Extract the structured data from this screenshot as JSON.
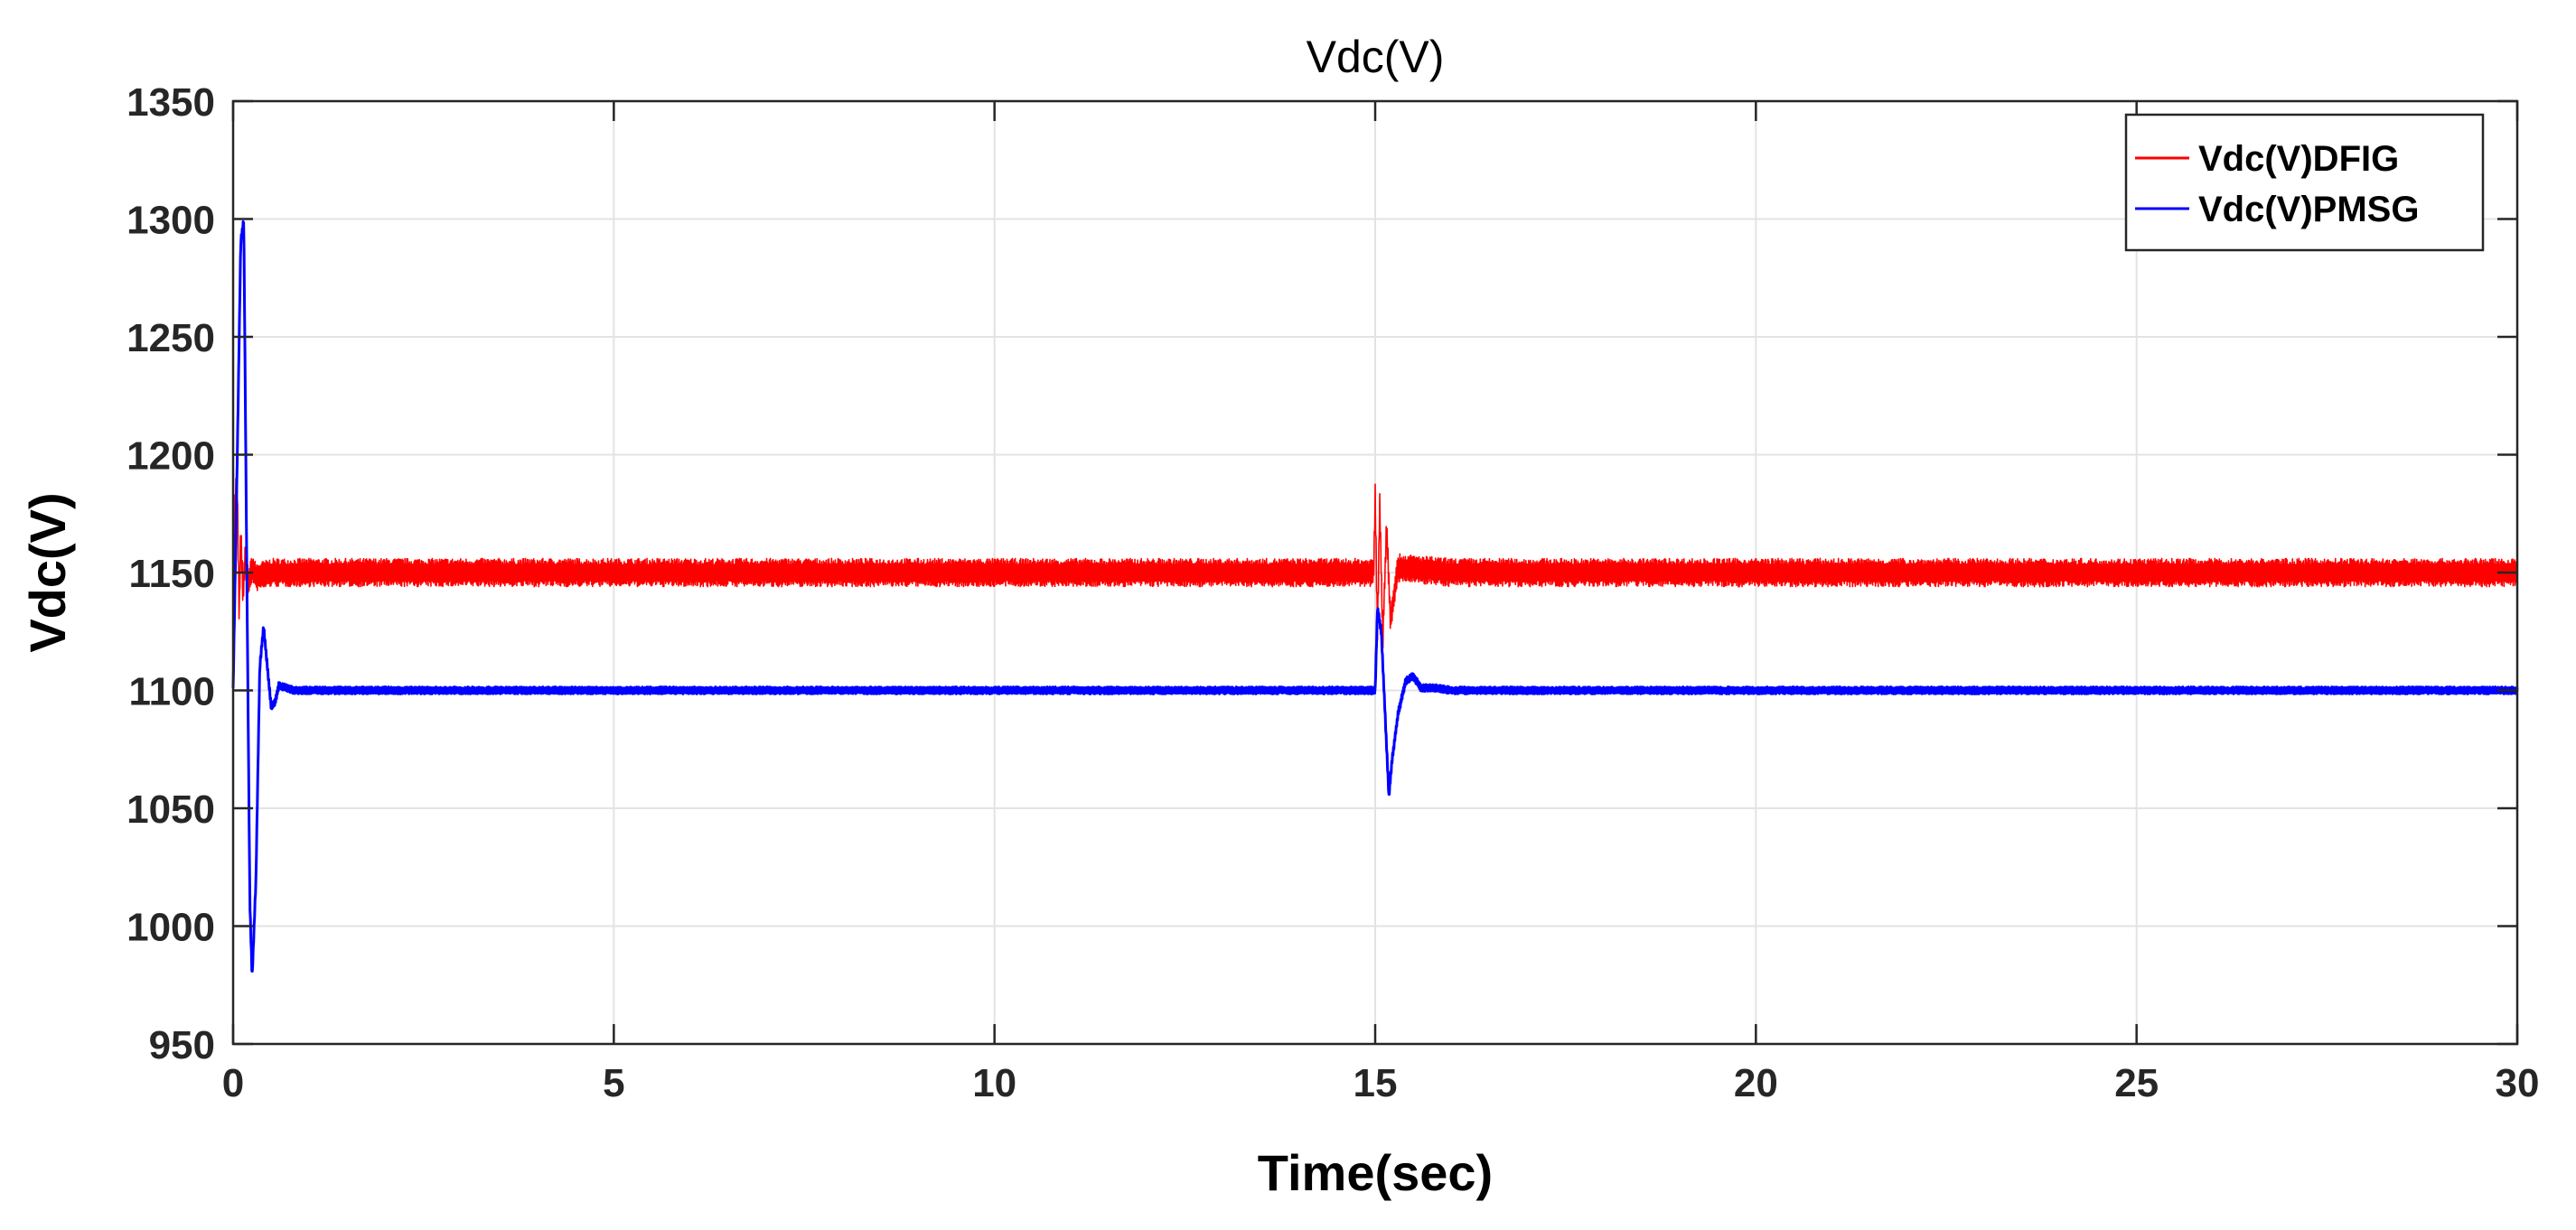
{
  "chart_data": {
    "type": "line",
    "title": "Vdc(V)",
    "xlabel": "Time(sec)",
    "ylabel": "Vdc(V)",
    "xlim": [
      0,
      30
    ],
    "ylim": [
      950,
      1350
    ],
    "xticks": [
      0,
      5,
      10,
      15,
      20,
      25,
      30
    ],
    "yticks": [
      950,
      1000,
      1050,
      1100,
      1150,
      1200,
      1250,
      1300,
      1350
    ],
    "grid": true,
    "legend_position": "top-right",
    "series": [
      {
        "name": "Vdc(V)DFIG",
        "color": "#ff0000",
        "ripple": 6,
        "x": [
          0,
          0.02,
          0.05,
          0.08,
          0.1,
          0.13,
          0.16,
          0.2,
          0.25,
          0.3,
          0.5,
          1,
          5,
          10,
          14.98,
          15.0,
          15.03,
          15.06,
          15.1,
          15.15,
          15.2,
          15.3,
          16,
          20,
          25,
          30
        ],
        "values": [
          1100,
          1175,
          1195,
          1130,
          1168,
          1140,
          1158,
          1145,
          1152,
          1148,
          1150,
          1150,
          1150,
          1150,
          1150,
          1183,
          1125,
          1180,
          1122,
          1170,
          1130,
          1152,
          1150,
          1150,
          1150,
          1150
        ]
      },
      {
        "name": "Vdc(V)PMSG",
        "color": "#0000ff",
        "ripple": 1.5,
        "x": [
          0,
          0.05,
          0.1,
          0.14,
          0.18,
          0.22,
          0.25,
          0.3,
          0.35,
          0.4,
          0.45,
          0.5,
          0.55,
          0.6,
          0.7,
          0.8,
          0.9,
          1.0,
          1.2,
          14.9,
          15.0,
          15.03,
          15.08,
          15.13,
          15.18,
          15.22,
          15.3,
          15.4,
          15.5,
          15.6,
          15.8,
          16,
          20,
          25,
          30
        ],
        "values": [
          1100,
          1190,
          1290,
          1300,
          1150,
          1010,
          978,
          1020,
          1110,
          1127,
          1110,
          1093,
          1095,
          1102,
          1101,
          1100,
          1100,
          1100,
          1100,
          1100,
          1100,
          1135,
          1125,
          1090,
          1055,
          1070,
          1090,
          1104,
          1106,
          1101,
          1101,
          1100,
          1100,
          1100,
          1100
        ]
      }
    ]
  }
}
